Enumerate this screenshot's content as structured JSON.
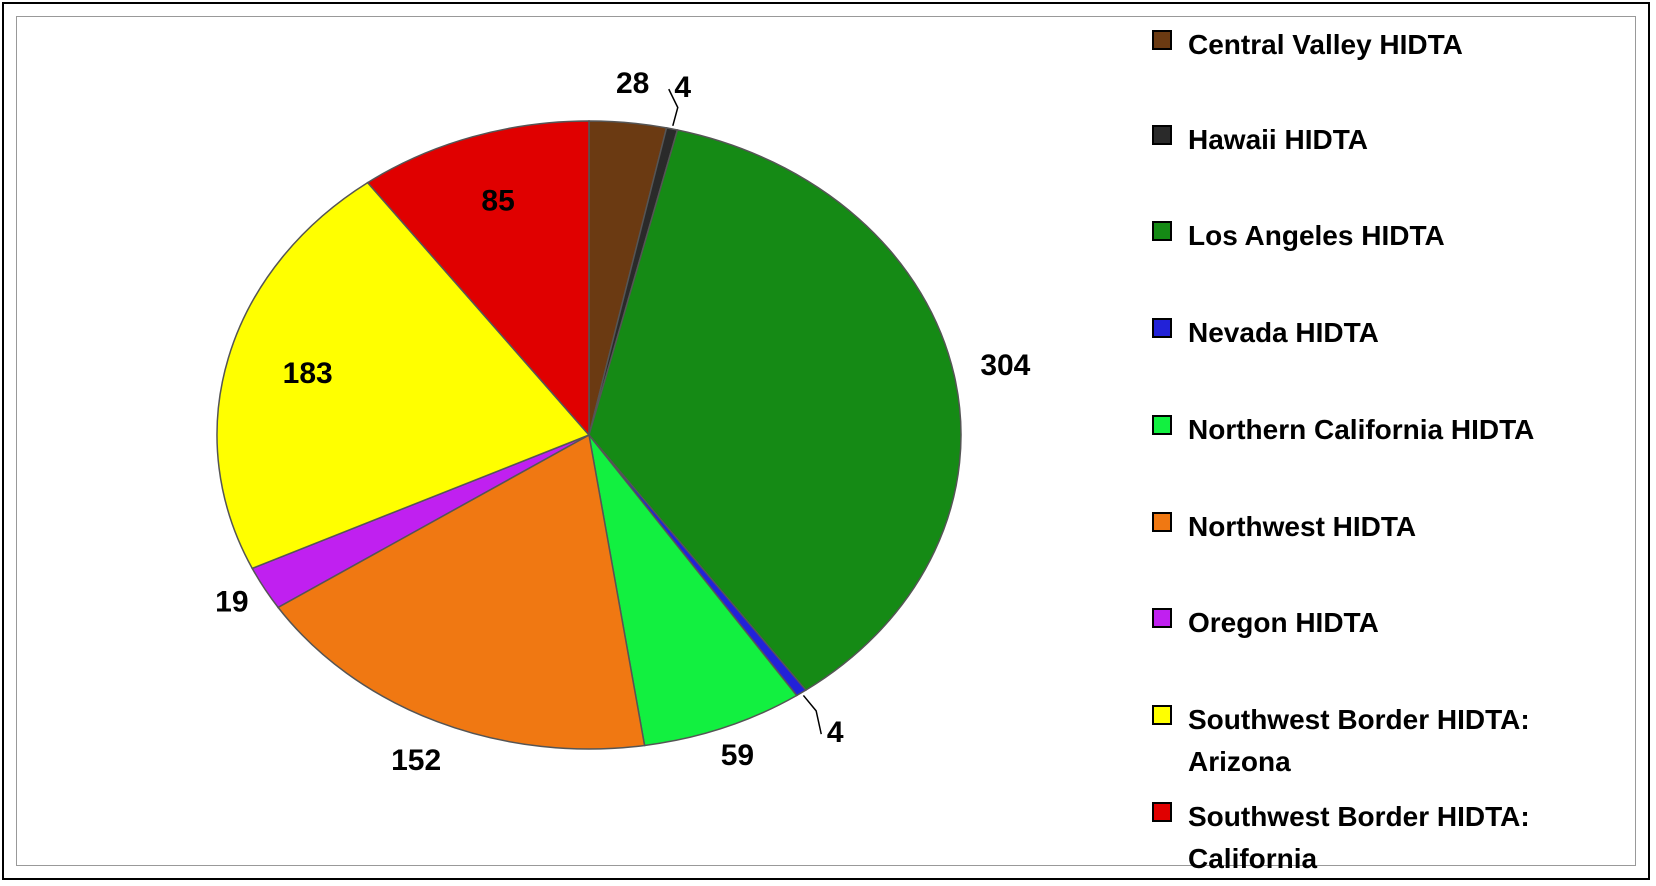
{
  "chart_data": {
    "type": "pie",
    "categories": [
      "Central Valley HIDTA",
      "Hawaii HIDTA",
      "Los Angeles HIDTA",
      "Nevada HIDTA",
      "Northern California HIDTA",
      "Northwest HIDTA",
      "Oregon HIDTA",
      "Southwest Border HIDTA: Arizona",
      "Southwest Border HIDTA: California"
    ],
    "values": [
      28,
      4,
      304,
      4,
      59,
      152,
      19,
      183,
      85
    ],
    "colors": [
      "#6b3a12",
      "#2a2a2a",
      "#158a15",
      "#2222d8",
      "#12f040",
      "#f07812",
      "#c020f0",
      "#ffff00",
      "#e00000"
    ],
    "legend": "right"
  }
}
